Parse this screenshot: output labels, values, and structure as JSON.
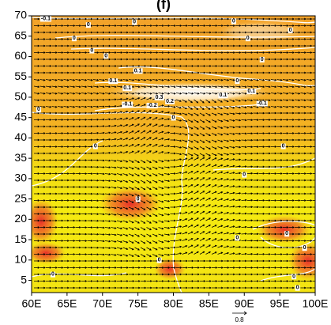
{
  "chart_data": {
    "type": "vector-field",
    "title": "(f)",
    "xlim": [
      60,
      100
    ],
    "ylim": [
      2,
      70
    ],
    "xticks": [
      {
        "value": 60,
        "label": "60E"
      },
      {
        "value": 65,
        "label": "65E"
      },
      {
        "value": 70,
        "label": "70E"
      },
      {
        "value": 75,
        "label": "75E"
      },
      {
        "value": 80,
        "label": "80E"
      },
      {
        "value": 85,
        "label": "85E"
      },
      {
        "value": 90,
        "label": "90E"
      },
      {
        "value": 95,
        "label": "95E"
      },
      {
        "value": 100,
        "label": "100E"
      }
    ],
    "yticks": [
      5,
      10,
      15,
      20,
      25,
      30,
      35,
      40,
      45,
      50,
      55,
      60,
      65,
      70
    ],
    "reference_vector": 0.8,
    "contour_labels": [
      {
        "lon": 62,
        "lat": 69.3,
        "value": -0.1
      },
      {
        "lon": 68,
        "lat": 67.8,
        "value": 0
      },
      {
        "lon": 74.5,
        "lat": 68.5,
        "value": 0
      },
      {
        "lon": 88.5,
        "lat": 68.7,
        "value": 0
      },
      {
        "lon": 96.5,
        "lat": 66.5,
        "value": 0
      },
      {
        "lon": 66,
        "lat": 64.5,
        "value": 0
      },
      {
        "lon": 90.5,
        "lat": 64.5,
        "value": 0
      },
      {
        "lon": 68.5,
        "lat": 61.5,
        "value": 0
      },
      {
        "lon": 70.5,
        "lat": 60.2,
        "value": 0
      },
      {
        "lon": 92.5,
        "lat": 59.3,
        "value": 0
      },
      {
        "lon": 75,
        "lat": 56.5,
        "value": 0.1
      },
      {
        "lon": 71.5,
        "lat": 54,
        "value": 0.1
      },
      {
        "lon": 73.5,
        "lat": 52.3,
        "value": 0.1
      },
      {
        "lon": 89,
        "lat": 54,
        "value": 0
      },
      {
        "lon": 91,
        "lat": 51.5,
        "value": 0.1
      },
      {
        "lon": 87,
        "lat": 50.5,
        "value": 0.1
      },
      {
        "lon": 78,
        "lat": 50,
        "value": 0.3
      },
      {
        "lon": 79.5,
        "lat": 49,
        "value": 0.2
      },
      {
        "lon": 61,
        "lat": 47,
        "value": 0
      },
      {
        "lon": 73.5,
        "lat": 48.3,
        "value": -0.1
      },
      {
        "lon": 77,
        "lat": 48,
        "value": -0.2
      },
      {
        "lon": 92.5,
        "lat": 48.5,
        "value": -0.1
      },
      {
        "lon": 80,
        "lat": 45,
        "value": 0
      },
      {
        "lon": 69,
        "lat": 38,
        "value": 0
      },
      {
        "lon": 95.5,
        "lat": 38,
        "value": 0
      },
      {
        "lon": 90,
        "lat": 31,
        "value": 0
      },
      {
        "lon": 75,
        "lat": 25,
        "value": 0
      },
      {
        "lon": 89,
        "lat": 15.5,
        "value": 0
      },
      {
        "lon": 96,
        "lat": 16.5,
        "value": 0
      },
      {
        "lon": 78,
        "lat": 10,
        "value": 0
      },
      {
        "lon": 98.5,
        "lat": 13,
        "value": 0
      },
      {
        "lon": 97,
        "lat": 6,
        "value": 0
      },
      {
        "lon": 63,
        "lat": 6.5,
        "value": 0
      },
      {
        "lon": 97.5,
        "lat": 3.2,
        "value": 0
      }
    ]
  }
}
